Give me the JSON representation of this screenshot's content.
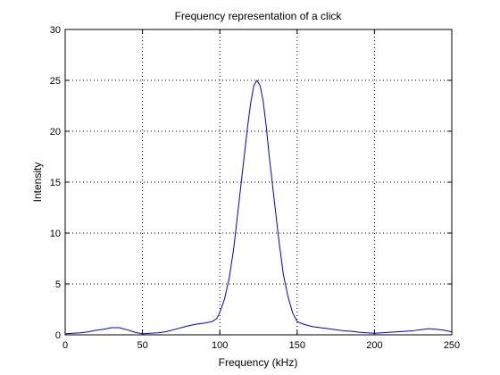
{
  "chart_data": {
    "type": "line",
    "title": "Frequency representation of a click",
    "xlabel": "Frequency (kHz)",
    "ylabel": "Intensity",
    "xlim": [
      0,
      250
    ],
    "ylim": [
      0,
      30
    ],
    "xticks": [
      0,
      50,
      100,
      150,
      200,
      250
    ],
    "yticks": [
      0,
      5,
      10,
      15,
      20,
      25,
      30
    ],
    "grid": true,
    "grid_style": "dotted",
    "line_color": "#0000c8",
    "series": [
      {
        "x": [
          0,
          5,
          10,
          15,
          20,
          25,
          30,
          35,
          40,
          45,
          50,
          55,
          60,
          65,
          70,
          75,
          80,
          85,
          90,
          95,
          98,
          100,
          103,
          106,
          109,
          112,
          115,
          118,
          120,
          122,
          124,
          126,
          128,
          130,
          132,
          135,
          138,
          141,
          144,
          147,
          150,
          155,
          160,
          165,
          170,
          175,
          180,
          185,
          190,
          195,
          200,
          205,
          210,
          215,
          220,
          225,
          230,
          235,
          240,
          245,
          250
        ],
        "y": [
          0.1,
          0.15,
          0.2,
          0.3,
          0.45,
          0.55,
          0.7,
          0.7,
          0.5,
          0.25,
          0.1,
          0.15,
          0.2,
          0.3,
          0.5,
          0.7,
          0.9,
          1.05,
          1.15,
          1.3,
          1.6,
          2.2,
          3.5,
          5.5,
          8.5,
          12.5,
          16.5,
          20.5,
          22.8,
          24.5,
          25.0,
          24.5,
          23.0,
          20.5,
          17.5,
          13.5,
          9.5,
          6.0,
          3.8,
          2.2,
          1.3,
          1.0,
          0.8,
          0.7,
          0.6,
          0.5,
          0.4,
          0.35,
          0.25,
          0.2,
          0.15,
          0.2,
          0.25,
          0.3,
          0.35,
          0.4,
          0.5,
          0.6,
          0.55,
          0.45,
          0.3
        ]
      }
    ]
  }
}
